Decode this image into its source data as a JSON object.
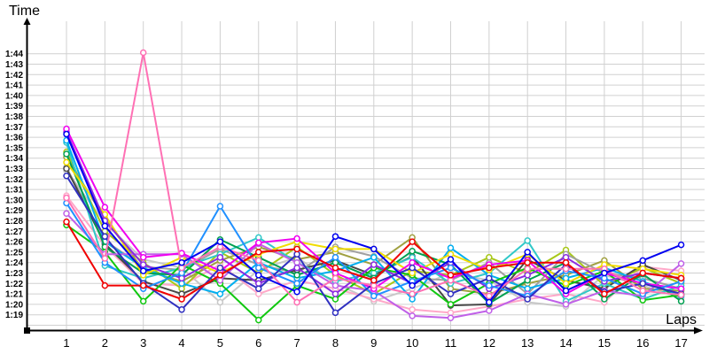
{
  "chart_data": {
    "type": "line",
    "title": "",
    "xlabel": "Laps",
    "ylabel": "Time",
    "x_tick_labels": [
      "1",
      "2",
      "3",
      "4",
      "5",
      "6",
      "7",
      "8",
      "9",
      "10",
      "11",
      "12",
      "13",
      "14",
      "15",
      "16",
      "17"
    ],
    "y_tick_labels": [
      "1:19",
      "1:20",
      "1:21",
      "1:22",
      "1:23",
      "1:24",
      "1:25",
      "1:26",
      "1:27",
      "1:28",
      "1:29",
      "1:30",
      "1:31",
      "1:32",
      "1:33",
      "1:34",
      "1:35",
      "1:36",
      "1:37",
      "1:38",
      "1:39",
      "1:40",
      "1:41",
      "1:42",
      "1:43",
      "1:44"
    ],
    "y_tick_seconds": [
      79,
      80,
      81,
      82,
      83,
      84,
      85,
      86,
      87,
      88,
      89,
      90,
      91,
      92,
      93,
      94,
      95,
      96,
      97,
      98,
      99,
      100,
      101,
      102,
      103,
      104
    ],
    "ylim_seconds": [
      78,
      104.5
    ],
    "grid": true,
    "legend_position": "none",
    "colors": {
      "grid": "#d0d0d0",
      "axis": "#000000",
      "marker_fill": "#ffffff"
    },
    "series": [
      {
        "name": "silver",
        "color": "#c8c8c8",
        "values": [
          92.8,
          87.8,
          84.3,
          83.5,
          80.2,
          83.3,
          84.5,
          82.0,
          80.3,
          81.5,
          83.0,
          82.3,
          80.2,
          79.8,
          82.8,
          81.8,
          80.6
        ]
      },
      {
        "name": "lightpink",
        "color": "#ffa8c8",
        "values": [
          90.4,
          85.6,
          82.0,
          81.8,
          83.8,
          81.0,
          82.3,
          81.5,
          80.5,
          79.5,
          79.2,
          79.8,
          80.5,
          81.0,
          80.2,
          83.6,
          83.2
        ]
      },
      {
        "name": "yellowgreen",
        "color": "#a8c818",
        "values": [
          94.6,
          87.0,
          84.0,
          81.5,
          85.0,
          83.0,
          85.5,
          82.8,
          81.0,
          83.2,
          82.8,
          84.5,
          83.0,
          85.2,
          81.8,
          83.5,
          82.0
        ]
      },
      {
        "name": "khaki",
        "color": "#a0a040",
        "values": [
          94.1,
          88.2,
          83.3,
          82.2,
          84.2,
          85.5,
          84.3,
          85.0,
          83.8,
          86.4,
          81.5,
          81.0,
          82.0,
          82.8,
          84.2,
          81.5,
          81.3
        ]
      },
      {
        "name": "gray",
        "color": "#a0a0a0",
        "values": [
          93.1,
          86.1,
          83.6,
          83.3,
          85.3,
          83.8,
          83.0,
          85.5,
          84.6,
          82.5,
          82.3,
          84.0,
          81.0,
          84.8,
          83.0,
          82.5,
          81.5
        ]
      },
      {
        "name": "black",
        "color": "#484848",
        "values": [
          93.0,
          85.8,
          82.2,
          81.0,
          82.5,
          82.3,
          83.3,
          84.2,
          82.8,
          84.6,
          79.9,
          80.0,
          84.3,
          82.3,
          81.5,
          83.8,
          82.3
        ]
      },
      {
        "name": "turquoise",
        "color": "#30c8c8",
        "values": [
          95.5,
          83.7,
          82.5,
          83.5,
          84.8,
          86.4,
          84.0,
          82.2,
          83.0,
          84.5,
          82.0,
          83.0,
          86.1,
          80.3,
          82.0,
          80.5,
          81.8
        ]
      },
      {
        "name": "skyblue",
        "color": "#00aeef",
        "values": [
          95.7,
          86.0,
          83.5,
          82.0,
          81.0,
          84.0,
          82.5,
          83.2,
          84.5,
          80.5,
          85.4,
          82.8,
          81.5,
          82.5,
          83.5,
          82.2,
          80.8
        ]
      },
      {
        "name": "green",
        "color": "#00a050",
        "values": [
          94.4,
          85.5,
          83.0,
          82.8,
          86.2,
          84.5,
          82.8,
          84.0,
          82.5,
          85.1,
          83.8,
          80.1,
          82.3,
          84.0,
          80.5,
          82.9,
          80.3
        ]
      },
      {
        "name": "lime",
        "color": "#10c810",
        "values": [
          87.6,
          85.0,
          80.3,
          83.8,
          82.0,
          78.5,
          81.8,
          80.5,
          83.5,
          82.8,
          80.0,
          82.0,
          83.5,
          81.8,
          83.2,
          80.4,
          80.9
        ]
      },
      {
        "name": "yellow",
        "color": "#f0dc00",
        "values": [
          93.6,
          88.6,
          82.8,
          84.5,
          83.0,
          84.8,
          86.0,
          85.3,
          85.3,
          83.0,
          84.8,
          83.3,
          84.8,
          82.0,
          83.8,
          83.4,
          82.8
        ]
      },
      {
        "name": "orchid",
        "color": "#c060e8",
        "values": [
          88.7,
          84.8,
          84.8,
          84.8,
          82.3,
          85.8,
          84.0,
          81.8,
          81.3,
          78.9,
          78.7,
          79.4,
          81.0,
          80.0,
          81.3,
          80.8,
          83.9
        ]
      },
      {
        "name": "purple",
        "color": "#8a2be2",
        "values": [
          96.5,
          88.0,
          83.8,
          82.5,
          84.5,
          82.0,
          83.5,
          81.0,
          83.8,
          82.0,
          84.0,
          81.5,
          82.8,
          84.5,
          82.2,
          83.0,
          82.5
        ]
      },
      {
        "name": "magenta",
        "color": "#f000f0",
        "values": [
          96.8,
          89.3,
          84.5,
          84.9,
          83.2,
          85.9,
          86.3,
          83.0,
          81.5,
          84.0,
          82.5,
          83.8,
          84.2,
          81.0,
          83.0,
          82.0,
          81.5
        ]
      },
      {
        "name": "dodgerblue",
        "color": "#2090ff",
        "values": [
          89.7,
          84.0,
          81.5,
          83.0,
          89.4,
          83.5,
          82.0,
          84.5,
          80.8,
          82.2,
          83.5,
          81.8,
          80.8,
          83.2,
          82.5,
          81.0,
          82.2
        ]
      },
      {
        "name": "navy",
        "color": "#3030c0",
        "values": [
          92.3,
          86.5,
          82.0,
          79.5,
          83.5,
          81.5,
          84.8,
          79.2,
          82.0,
          83.5,
          81.0,
          82.5,
          80.5,
          83.8,
          81.2,
          82.0,
          81.0
        ]
      },
      {
        "name": "hotpink",
        "color": "#ff70b4",
        "values": [
          90.2,
          84.4,
          104.1,
          83.5,
          85.5,
          84.2,
          80.2,
          82.5,
          81.8,
          81.0,
          82.3,
          80.8,
          83.4,
          83.4,
          83.4,
          81.3,
          80.9
        ]
      },
      {
        "name": "red",
        "color": "#f00000",
        "values": [
          87.9,
          81.8,
          81.8,
          80.5,
          82.8,
          85.0,
          85.3,
          83.5,
          82.3,
          86.0,
          82.8,
          83.5,
          84.0,
          84.0,
          81.0,
          83.0,
          82.5
        ]
      },
      {
        "name": "blue",
        "color": "#0000f0",
        "values": [
          96.3,
          87.5,
          83.2,
          84.0,
          86.0,
          82.8,
          81.2,
          86.5,
          85.3,
          81.8,
          84.3,
          80.2,
          85.0,
          81.3,
          83.0,
          84.2,
          85.7
        ]
      }
    ]
  }
}
